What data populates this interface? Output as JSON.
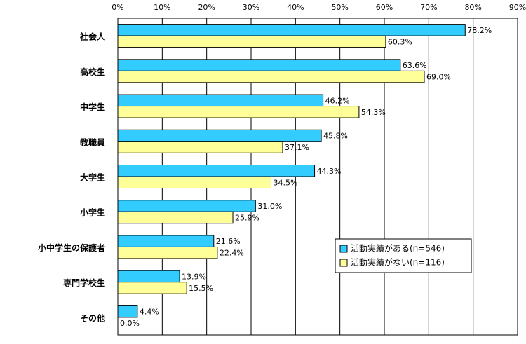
{
  "chart_data": {
    "type": "bar",
    "orientation": "horizontal",
    "categories": [
      "社会人",
      "高校生",
      "中学生",
      "教職員",
      "大学生",
      "小学生",
      "小中学生の保護者",
      "専門学校生",
      "その他"
    ],
    "series": [
      {
        "name": "活動実績がある(n=546)",
        "color": "#33ccff",
        "values": [
          78.2,
          63.6,
          46.2,
          45.8,
          44.3,
          31.0,
          21.6,
          13.9,
          4.4
        ]
      },
      {
        "name": "活動実績がない(n=116)",
        "color": "#ffff99",
        "values": [
          60.3,
          69.0,
          54.3,
          37.1,
          34.5,
          25.9,
          22.4,
          15.5,
          0.0
        ]
      }
    ],
    "value_labels": [
      [
        "78.2%",
        "63.6%",
        "46.2%",
        "45.8%",
        "44.3%",
        "31.0%",
        "21.6%",
        "13.9%",
        "4.4%"
      ],
      [
        "60.3%",
        "69.0%",
        "54.3%",
        "37.1%",
        "34.5%",
        "25.9%",
        "22.4%",
        "15.5%",
        "0.0%"
      ]
    ],
    "xlim": [
      0,
      90
    ],
    "x_ticks": [
      "0%",
      "10%",
      "20%",
      "30%",
      "40%",
      "50%",
      "60%",
      "70%",
      "80%",
      "90%"
    ],
    "x_axis_position": "top",
    "grid": true,
    "legend_position": "bottom-right",
    "title": "",
    "xlabel": "",
    "ylabel": ""
  }
}
